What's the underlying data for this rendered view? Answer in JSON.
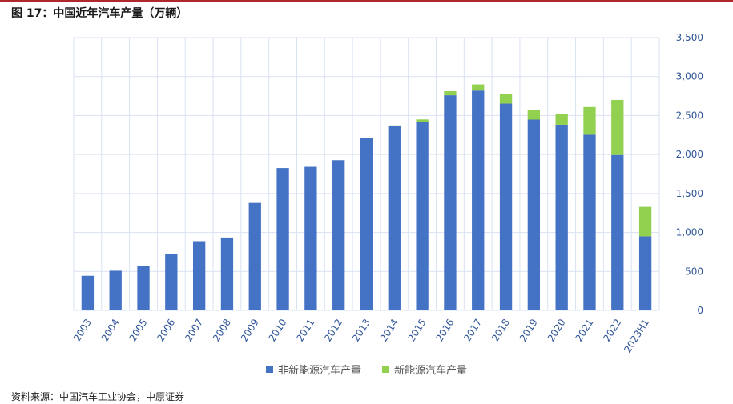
{
  "title": "图 17：中国近年汽车产量（万辆）",
  "source": "资料来源：中国汽车工业协会，中原证券",
  "colors": {
    "non_nev": "#4472c4",
    "nev": "#92d050",
    "grid": "#d9e1f2",
    "axis_text": "#2f5597"
  },
  "chart_data": {
    "type": "bar",
    "stacked": true,
    "categories": [
      "2003",
      "2004",
      "2005",
      "2006",
      "2007",
      "2008",
      "2009",
      "2010",
      "2011",
      "2012",
      "2013",
      "2014",
      "2015",
      "2016",
      "2017",
      "2018",
      "2019",
      "2020",
      "2021",
      "2022",
      "2023H1"
    ],
    "series": [
      {
        "name": "非新能源汽车产量",
        "values": [
          444,
          509,
          571,
          728,
          888,
          935,
          1379,
          1826,
          1842,
          1927,
          2212,
          2365,
          2416,
          2760,
          2820,
          2653,
          2448,
          2382,
          2254,
          1994,
          950
        ]
      },
      {
        "name": "新能源汽车产量",
        "values": [
          0,
          0,
          0,
          0,
          0,
          0,
          0,
          0,
          0,
          0,
          0,
          8,
          34,
          52,
          79,
          127,
          124,
          137,
          355,
          706,
          378
        ]
      }
    ],
    "yaxis_position": "right",
    "ylim": [
      0,
      3500
    ],
    "yticks": [
      "0",
      "500",
      "1,000",
      "1,500",
      "2,000",
      "2,500",
      "3,000",
      "3,500"
    ],
    "grid": true,
    "legend_position": "bottom"
  }
}
